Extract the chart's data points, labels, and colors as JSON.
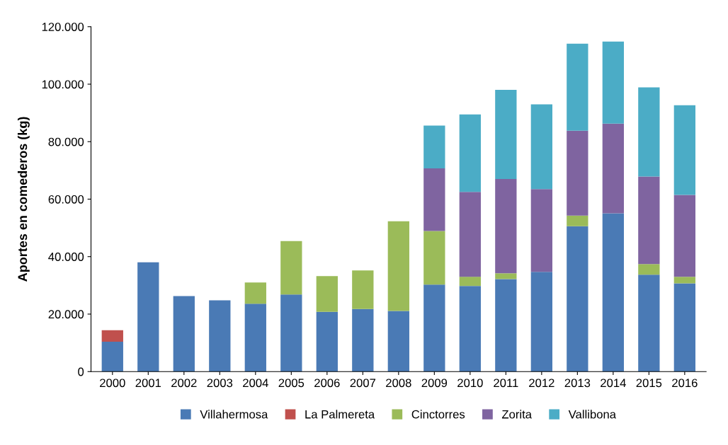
{
  "chart_data": {
    "type": "bar",
    "stacked": true,
    "ylabel": "Aportes en comederos (kg)",
    "categories": [
      "2000",
      "2001",
      "2002",
      "2003",
      "2004",
      "2005",
      "2006",
      "2007",
      "2008",
      "2009",
      "2010",
      "2011",
      "2012",
      "2013",
      "2014",
      "2015",
      "2016"
    ],
    "series": [
      {
        "name": "Villahermosa",
        "color": "#4a7ab5",
        "values": [
          10400,
          38000,
          26300,
          24800,
          23600,
          26800,
          20800,
          21800,
          21100,
          30300,
          29800,
          32200,
          34700,
          50600,
          55100,
          33700,
          30700
        ]
      },
      {
        "name": "La Palmereta",
        "color": "#c0504d",
        "values": [
          4000,
          null,
          null,
          null,
          null,
          null,
          null,
          null,
          null,
          null,
          null,
          null,
          null,
          null,
          null,
          null,
          null
        ]
      },
      {
        "name": "Cinctorres",
        "color": "#9bbb59",
        "values": [
          null,
          null,
          null,
          null,
          7400,
          18600,
          12400,
          13400,
          31200,
          18600,
          3200,
          2000,
          null,
          3700,
          null,
          3700,
          2300
        ]
      },
      {
        "name": "Zorita",
        "color": "#7f64a0",
        "values": [
          null,
          null,
          null,
          null,
          null,
          null,
          null,
          null,
          null,
          21800,
          29500,
          32800,
          28800,
          29500,
          31200,
          30500,
          28500
        ]
      },
      {
        "name": "Vallibona",
        "color": "#4bacc6",
        "values": [
          null,
          null,
          null,
          null,
          null,
          null,
          null,
          null,
          null,
          14900,
          27000,
          31000,
          29500,
          30300,
          28500,
          31000,
          31200
        ]
      }
    ],
    "ylim": [
      0,
      120000
    ],
    "yticks": [
      {
        "value": 0,
        "label": "0"
      },
      {
        "value": 20000,
        "label": "20.000"
      },
      {
        "value": 40000,
        "label": "40.000"
      },
      {
        "value": 60000,
        "label": "60.000"
      },
      {
        "value": 80000,
        "label": "80.000"
      },
      {
        "value": 100000,
        "label": "100.000"
      },
      {
        "value": 120000,
        "label": "120.000"
      }
    ],
    "grid": false,
    "legend": "bottom"
  }
}
